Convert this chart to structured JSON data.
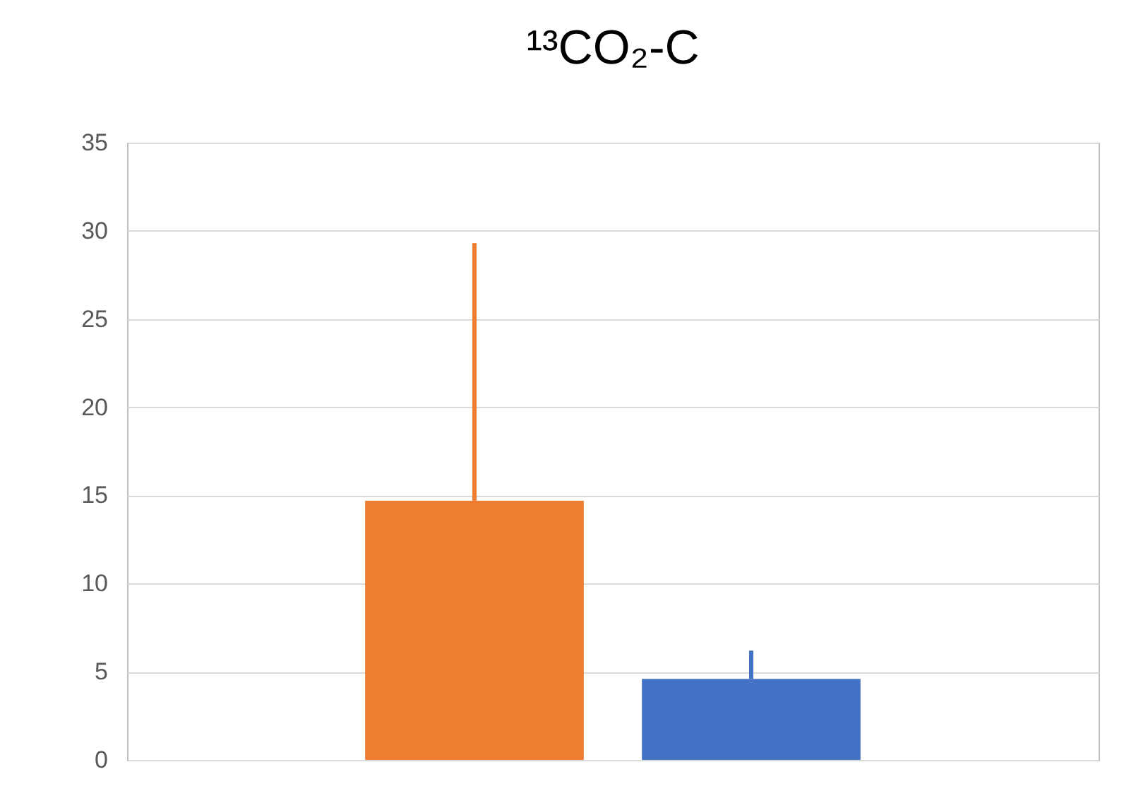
{
  "chart_data": {
    "type": "bar",
    "title": "¹³CO₂-C",
    "categories": [
      null
    ],
    "series": [
      {
        "color": "#ed7d31",
        "values": [
          14.7
        ],
        "errors": [
          [
            14.7,
            29.3
          ]
        ]
      },
      {
        "color": "#4472c4",
        "values": [
          4.6
        ],
        "errors": [
          [
            4.6,
            6.2
          ]
        ]
      }
    ],
    "ylim": [
      0,
      35
    ],
    "yticks": [
      0,
      5,
      10,
      15,
      20,
      25,
      30,
      35
    ],
    "grid": "y"
  }
}
